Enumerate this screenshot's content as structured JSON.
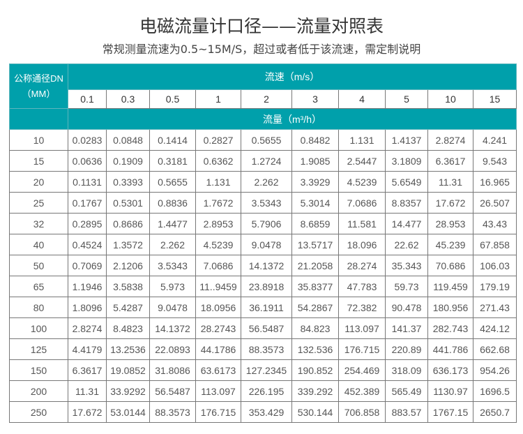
{
  "title": "电磁流量计口径——流量对照表",
  "subtitle": "常规测量流速为0.5~15M/S，超过或者低于该流速，需定制说明",
  "table": {
    "dn_header_line1": "公称通径DN",
    "dn_header_line2": "（MM）",
    "speed_header": "流速（m/s）",
    "flow_header": "流量（m³/h）",
    "speeds": [
      "0.1",
      "0.3",
      "0.5",
      "1",
      "2",
      "3",
      "4",
      "5",
      "10",
      "15"
    ],
    "rows": [
      {
        "dn": "10",
        "values": [
          "0.0283",
          "0.0848",
          "0.1414",
          "0.2827",
          "0.5655",
          "0.8482",
          "1.131",
          "1.4137",
          "2.8274",
          "4.241"
        ]
      },
      {
        "dn": "15",
        "values": [
          "0.0636",
          "0.1909",
          "0.3181",
          "0.6362",
          "1.2724",
          "1.9085",
          "2.5447",
          "3.1809",
          "6.3617",
          "9.543"
        ]
      },
      {
        "dn": "20",
        "values": [
          "0.1131",
          "0.3393",
          "0.5655",
          "1.131",
          "2.262",
          "3.3929",
          "4.5239",
          "5.6549",
          "11.31",
          "16.965"
        ]
      },
      {
        "dn": "25",
        "values": [
          "0.1767",
          "0.5301",
          "0.8836",
          "1.7672",
          "3.5343",
          "5.3014",
          "7.0686",
          "8.8357",
          "17.672",
          "26.507"
        ]
      },
      {
        "dn": "32",
        "values": [
          "0.2895",
          "0.8686",
          "1.4477",
          "2.8953",
          "5.7906",
          "8.6859",
          "11.581",
          "14.477",
          "28.953",
          "43.43"
        ]
      },
      {
        "dn": "40",
        "values": [
          "0.4524",
          "1.3572",
          "2.262",
          "4.5239",
          "9.0478",
          "13.5717",
          "18.096",
          "22.62",
          "45.239",
          "67.858"
        ]
      },
      {
        "dn": "50",
        "values": [
          "0.7069",
          "2.1206",
          "3.5343",
          "7.0686",
          "14.1372",
          "21.2058",
          "28.274",
          "35.343",
          "70.686",
          "106.03"
        ]
      },
      {
        "dn": "65",
        "values": [
          "1.1946",
          "3.5838",
          "5.973",
          "11..9459",
          "23.8918",
          "35.8377",
          "47.783",
          "59.73",
          "119.459",
          "179.19"
        ]
      },
      {
        "dn": "80",
        "values": [
          "1.8096",
          "5.4287",
          "9.0478",
          "18.0956",
          "36.1911",
          "54.2867",
          "72.382",
          "90.478",
          "180.956",
          "271.43"
        ]
      },
      {
        "dn": "100",
        "values": [
          "2.8274",
          "8.4823",
          "14.1372",
          "28.2743",
          "56.5487",
          "84.823",
          "113.097",
          "141.37",
          "282.743",
          "424.12"
        ]
      },
      {
        "dn": "125",
        "values": [
          "4.4179",
          "13.2536",
          "22.0893",
          "44.1786",
          "88.3573",
          "132.536",
          "176.715",
          "220.89",
          "441.786",
          "662.68"
        ]
      },
      {
        "dn": "150",
        "values": [
          "6.3617",
          "19.0852",
          "31.8086",
          "63.6173",
          "127.2345",
          "190.852",
          "254.469",
          "318.09",
          "636.173",
          "954.26"
        ]
      },
      {
        "dn": "200",
        "values": [
          "11.31",
          "33.9292",
          "56.5487",
          "113.097",
          "226.195",
          "339.292",
          "452.389",
          "565.49",
          "1130.97",
          "1696.5"
        ]
      },
      {
        "dn": "250",
        "values": [
          "17.672",
          "53.0144",
          "88.3573",
          "176.715",
          "353.429",
          "530.144",
          "706.858",
          "883.57",
          "1767.15",
          "2650.7"
        ]
      }
    ]
  },
  "colors": {
    "header_teal": "#00a0ab"
  }
}
